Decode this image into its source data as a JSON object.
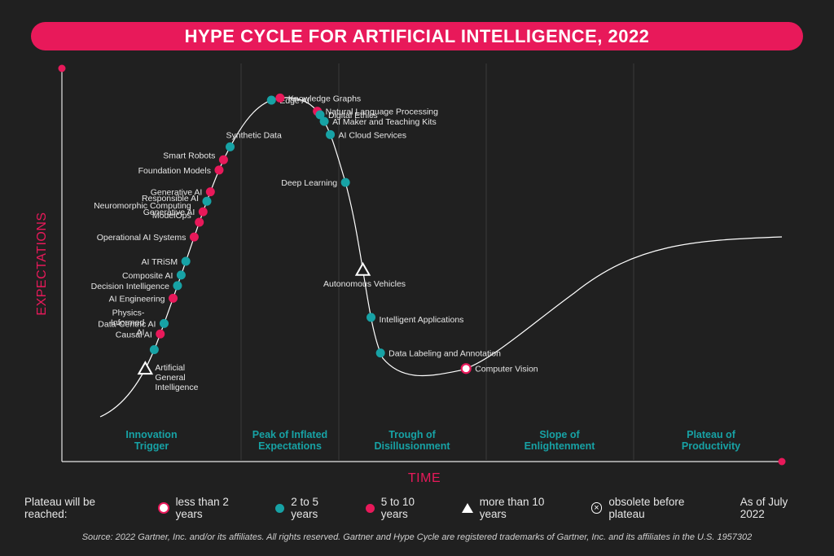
{
  "title": "HYPE CYCLE FOR ARTIFICIAL INTELLIGENCE, 2022",
  "colors": {
    "background": "#202020",
    "accent_pink": "#e8195a",
    "teal": "#17a2a5",
    "white": "#ffffff"
  },
  "chart_data": {
    "type": "scatter",
    "title": "HYPE CYCLE FOR ARTIFICIAL INTELLIGENCE, 2022",
    "xlabel": "TIME",
    "ylabel": "EXPECTATIONS",
    "grid": false,
    "phases": [
      {
        "name1": "Innovation",
        "name2": "Trigger"
      },
      {
        "name1": "Peak of Inflated",
        "name2": "Expectations"
      },
      {
        "name1": "Trough of",
        "name2": "Disillusionment"
      },
      {
        "name1": "Slope of",
        "name2": "Enlightenment"
      },
      {
        "name1": "Plateau of",
        "name2": "Productivity"
      }
    ],
    "points": [
      {
        "lines": [
          "Artificial",
          "General",
          "Intelligence"
        ],
        "category": "more than 10 years",
        "t": 0.06
      },
      {
        "lines": [
          "Physics-",
          "Informed",
          "AI"
        ],
        "category": "2 to 5 years",
        "t": 0.079
      },
      {
        "lines": [
          "Causal AI"
        ],
        "category": "5 to 10 years",
        "t": 0.094
      },
      {
        "lines": [
          "Data-Centric AI"
        ],
        "category": "2 to 5 years",
        "t": 0.104
      },
      {
        "lines": [
          "AI Engineering"
        ],
        "category": "5 to 10 years",
        "t": 0.128
      },
      {
        "lines": [
          "Decision Intelligence"
        ],
        "category": "2 to 5 years",
        "t": 0.14
      },
      {
        "lines": [
          "Composite AI"
        ],
        "category": "2 to 5 years",
        "t": 0.15
      },
      {
        "lines": [
          "AI TRiSM"
        ],
        "category": "2 to 5 years",
        "t": 0.163
      },
      {
        "lines": [
          "Operational AI Systems"
        ],
        "category": "5 to 10 years",
        "t": 0.186
      },
      {
        "lines": [
          "Neuromorphic Computing",
          "ModelOps"
        ],
        "category": "5 to 10 years",
        "t": 0.2
      },
      {
        "lines": [
          "Generative AI"
        ],
        "category": "5 to 10 years",
        "t": 0.21
      },
      {
        "lines": [
          "Responsible AI"
        ],
        "category": "2 to 5 years",
        "t": 0.22
      },
      {
        "lines": [
          "Generative AI"
        ],
        "category": "5 to 10 years",
        "t": 0.229
      },
      {
        "lines": [
          "Foundation Models"
        ],
        "category": "5 to 10 years",
        "t": 0.25
      },
      {
        "lines": [
          "Smart Robots"
        ],
        "category": "5 to 10 years",
        "t": 0.26
      },
      {
        "lines": [
          "Synthetic Data"
        ],
        "category": "2 to 5 years",
        "t": 0.273
      },
      {
        "lines": [
          "Edge AI"
        ],
        "category": "2 to 5 years",
        "t": 0.33
      },
      {
        "lines": [
          "Knowledge Graphs"
        ],
        "category": "5 to 10 years",
        "t": 0.338
      },
      {
        "lines": [
          "Natural Language Processing"
        ],
        "category": "5 to 10 years",
        "t": 0.375
      },
      {
        "lines": [
          "Digital Ethics"
        ],
        "category": "2 to 5 years",
        "t": 0.379
      },
      {
        "lines": [
          "AI Maker and Teaching Kits"
        ],
        "category": "2 to 5 years",
        "t": 0.386
      },
      {
        "lines": [
          "AI Cloud Services"
        ],
        "category": "2 to 5 years",
        "t": 0.399
      },
      {
        "lines": [
          "Deep Learning"
        ],
        "category": "2 to 5 years",
        "t": 0.444
      },
      {
        "lines": [
          "Autonomous Vehicles"
        ],
        "category": "more than 10 years",
        "t": 0.524
      },
      {
        "lines": [
          "Intelligent Applications"
        ],
        "category": "2 to 5 years",
        "t": 0.567
      },
      {
        "lines": [
          "Data Labeling and Annotation"
        ],
        "category": "2 to 5 years",
        "t": 0.6
      },
      {
        "lines": [
          "Computer Vision"
        ],
        "category": "less than 2 years",
        "t": 0.685
      }
    ]
  },
  "legend": {
    "title": "Plateau will be reached:",
    "items": [
      {
        "label": "less than 2 years",
        "icon": "white-circle"
      },
      {
        "label": "2 to 5 years",
        "icon": "teal-dot"
      },
      {
        "label": "5 to 10 years",
        "icon": "pink-dot"
      },
      {
        "label": "more than 10 years",
        "icon": "white-triangle"
      },
      {
        "label": "obsolete before plateau",
        "icon": "circled-x"
      }
    ],
    "as_of": "As of July 2022"
  },
  "source": "Source: 2022 Gartner, Inc. and/or its affiliates. All rights reserved. Gartner and Hype Cycle are registered trademarks of Gartner, Inc. and its affiliates in the U.S. 1957302"
}
